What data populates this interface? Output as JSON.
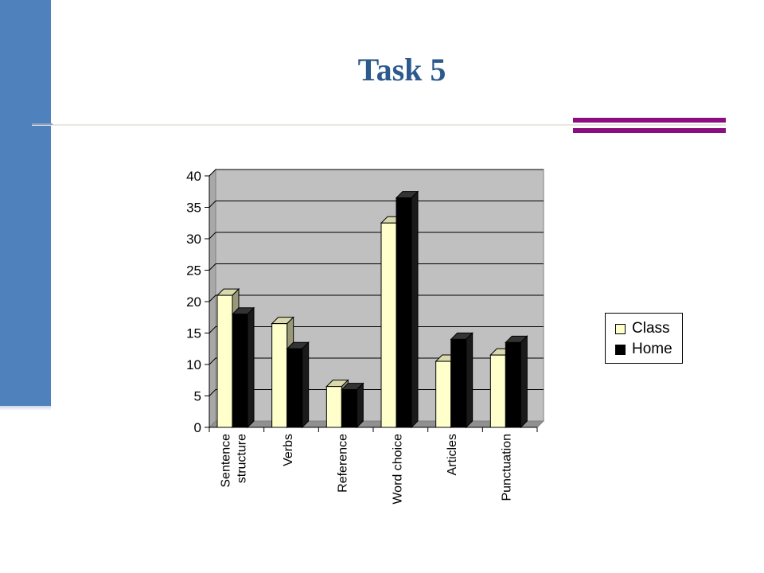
{
  "slide": {
    "title": "Task 5",
    "colors": {
      "left_bar": "#4f81bd",
      "accent": "#8b0e7e",
      "title": "#2d5a8c"
    }
  },
  "chart_data": {
    "type": "bar",
    "title": "",
    "xlabel": "",
    "ylabel": "",
    "categories": [
      [
        "Sentence",
        "structure"
      ],
      [
        "Verbs"
      ],
      [
        "Reference"
      ],
      [
        "Word choice"
      ],
      [
        "Articles"
      ],
      [
        "Punctuation"
      ]
    ],
    "series": [
      {
        "name": "Class",
        "values": [
          21,
          16.5,
          6.5,
          32.5,
          10.5,
          11.5
        ],
        "color": "#ffffcc"
      },
      {
        "name": "Home",
        "values": [
          18,
          12.5,
          6,
          36.5,
          14,
          13.5
        ],
        "color": "#000000"
      }
    ],
    "ylim": [
      0,
      40
    ],
    "yticks": [
      "0",
      "5",
      "10",
      "15",
      "20",
      "25",
      "30",
      "35",
      "40"
    ],
    "grid": true,
    "legend_position": "right",
    "plot_background": "#c0c0c0"
  }
}
